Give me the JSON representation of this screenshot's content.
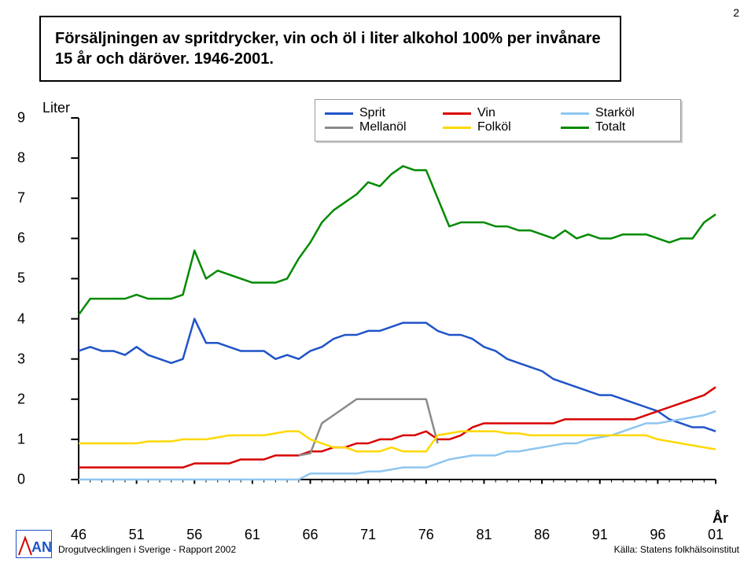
{
  "page_number": "2",
  "title": "Försäljningen av spritdrycker, vin och öl i liter alkohol 100% per invånare 15 år och däröver. 1946-2001.",
  "y_title": "Liter",
  "x_title": "År",
  "x_ticks": [
    "46",
    "51",
    "56",
    "61",
    "66",
    "71",
    "76",
    "81",
    "86",
    "91",
    "96",
    "01"
  ],
  "y_ticks": [
    "0",
    "1",
    "2",
    "3",
    "4",
    "5",
    "6",
    "7",
    "8",
    "9"
  ],
  "x_lim": [
    46,
    101
  ],
  "y_lim": [
    0,
    9
  ],
  "chart": {
    "type": "line",
    "line_width": 2.5,
    "background": "#ffffff",
    "axis_color": "#000000",
    "series": [
      {
        "name": "Sprit",
        "color": "#1f53c7",
        "data": [
          3.2,
          3.3,
          3.2,
          3.2,
          3.1,
          3.3,
          3.1,
          3.0,
          2.9,
          3.0,
          4.0,
          3.4,
          3.4,
          3.3,
          3.2,
          3.2,
          3.2,
          3.0,
          3.1,
          3.0,
          3.2,
          3.3,
          3.5,
          3.6,
          3.6,
          3.7,
          3.7,
          3.8,
          3.9,
          3.9,
          3.9,
          3.7,
          3.6,
          3.6,
          3.5,
          3.3,
          3.2,
          3.0,
          2.9,
          2.8,
          2.7,
          2.5,
          2.4,
          2.3,
          2.2,
          2.1,
          2.1,
          2.0,
          1.9,
          1.8,
          1.7,
          1.5,
          1.4,
          1.3,
          1.3,
          1.2
        ]
      },
      {
        "name": "Vin",
        "color": "#d80000",
        "data": [
          0.3,
          0.3,
          0.3,
          0.3,
          0.3,
          0.3,
          0.3,
          0.3,
          0.3,
          0.3,
          0.4,
          0.4,
          0.4,
          0.4,
          0.5,
          0.5,
          0.5,
          0.6,
          0.6,
          0.6,
          0.7,
          0.7,
          0.8,
          0.8,
          0.9,
          0.9,
          1.0,
          1.0,
          1.1,
          1.1,
          1.2,
          1.0,
          1.0,
          1.1,
          1.3,
          1.4,
          1.4,
          1.4,
          1.4,
          1.4,
          1.4,
          1.4,
          1.5,
          1.5,
          1.5,
          1.5,
          1.5,
          1.5,
          1.5,
          1.6,
          1.7,
          1.8,
          1.9,
          2.0,
          2.1,
          2.3
        ]
      },
      {
        "name": "Starköl",
        "color": "#8ec6f0",
        "data": [
          0,
          0,
          0,
          0,
          0,
          0,
          0,
          0,
          0,
          0,
          0,
          0,
          0,
          0,
          0,
          0,
          0,
          0,
          0,
          0,
          0.15,
          0.15,
          0.15,
          0.15,
          0.15,
          0.2,
          0.2,
          0.25,
          0.3,
          0.3,
          0.3,
          0.4,
          0.5,
          0.55,
          0.6,
          0.6,
          0.6,
          0.7,
          0.7,
          0.75,
          0.8,
          0.85,
          0.9,
          0.9,
          1.0,
          1.05,
          1.1,
          1.2,
          1.3,
          1.4,
          1.4,
          1.45,
          1.5,
          1.55,
          1.6,
          1.7
        ]
      },
      {
        "name": "Mellanöl",
        "color": "#8a8a8a",
        "data": [
          null,
          null,
          null,
          null,
          null,
          null,
          null,
          null,
          null,
          null,
          null,
          null,
          null,
          null,
          null,
          null,
          null,
          null,
          null,
          0.6,
          0.65,
          1.4,
          1.6,
          1.8,
          2.0,
          2.0,
          2.0,
          2.0,
          2.0,
          2.0,
          2.0,
          0.9,
          null,
          null,
          null,
          null,
          null,
          null,
          null,
          null,
          null,
          null,
          null,
          null,
          null,
          null,
          null,
          null,
          null,
          null,
          null,
          null,
          null,
          null,
          null,
          null
        ]
      },
      {
        "name": "Folköl",
        "color": "#ffd800",
        "data": [
          0.9,
          0.9,
          0.9,
          0.9,
          0.9,
          0.9,
          0.95,
          0.95,
          0.95,
          1.0,
          1.0,
          1.0,
          1.05,
          1.1,
          1.1,
          1.1,
          1.1,
          1.15,
          1.2,
          1.2,
          1.0,
          0.9,
          0.8,
          0.8,
          0.7,
          0.7,
          0.7,
          0.8,
          0.7,
          0.7,
          0.7,
          1.1,
          1.15,
          1.2,
          1.2,
          1.2,
          1.2,
          1.15,
          1.15,
          1.1,
          1.1,
          1.1,
          1.1,
          1.1,
          1.1,
          1.1,
          1.1,
          1.1,
          1.1,
          1.1,
          1.0,
          0.95,
          0.9,
          0.85,
          0.8,
          0.75
        ]
      },
      {
        "name": "Totalt",
        "color": "#008a00",
        "data": [
          4.1,
          4.5,
          4.5,
          4.5,
          4.5,
          4.6,
          4.5,
          4.5,
          4.5,
          4.6,
          5.7,
          5.0,
          5.2,
          5.1,
          5.0,
          4.9,
          4.9,
          4.9,
          5.0,
          5.5,
          5.9,
          6.4,
          6.7,
          6.9,
          7.1,
          7.4,
          7.3,
          7.6,
          7.8,
          7.7,
          7.7,
          7.0,
          6.3,
          6.4,
          6.4,
          6.4,
          6.3,
          6.3,
          6.2,
          6.2,
          6.1,
          6.0,
          6.2,
          6.0,
          6.1,
          6.0,
          6.0,
          6.1,
          6.1,
          6.1,
          6.0,
          5.9,
          6.0,
          6.0,
          6.4,
          6.6
        ]
      }
    ]
  },
  "legend": {
    "row1": [
      {
        "label": "Sprit",
        "color": "#1f53c7"
      },
      {
        "label": "Vin",
        "color": "#d80000"
      },
      {
        "label": "Starköl",
        "color": "#8ec6f0"
      }
    ],
    "row2": [
      {
        "label": "Mellanöl",
        "color": "#8a8a8a"
      },
      {
        "label": "Folköl",
        "color": "#ffd800"
      },
      {
        "label": "Totalt",
        "color": "#008a00"
      }
    ]
  },
  "footer_left": "Drogutvecklingen i Sverige - Rapport 2002",
  "footer_right": "Källa: Statens folkhälsoinstitut",
  "logo": {
    "text": "AN",
    "bg": "#ffffff",
    "border": "#1f53c7",
    "accent": "#d80000",
    "text_color": "#1f53c7"
  }
}
